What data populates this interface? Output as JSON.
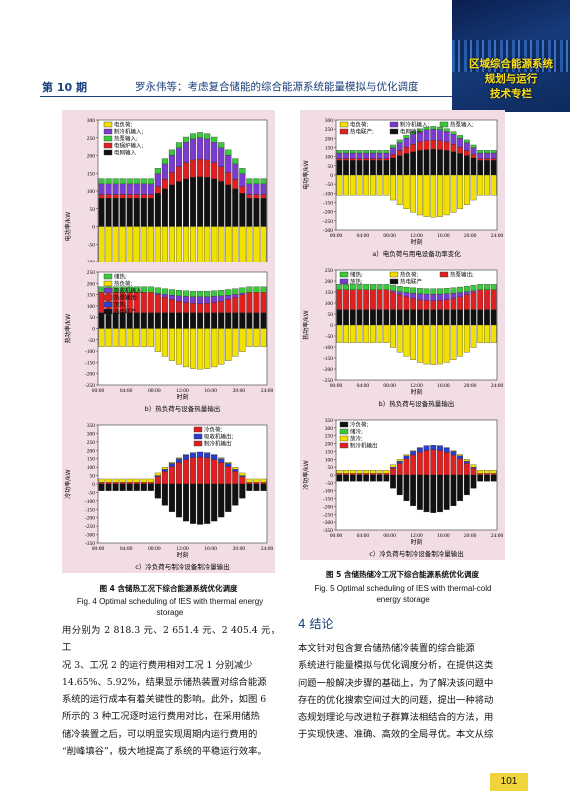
{
  "header": {
    "issue": "第 10 期",
    "running_title": "罗永伟等：考虑复合储能的综合能源系统能量模拟与优化调度"
  },
  "banner": {
    "lines": [
      "区域综合能源系统",
      "规划与运行",
      "技术专栏"
    ]
  },
  "colors": {
    "pink_panel": "#f2dde6",
    "electric_load": "#f2e000",
    "chiller_input": "#7b3bd1",
    "heat_pump_input": "#3cc83c",
    "heat_output": "#e02020",
    "grid_input": "#111111",
    "ice_storage": "#2a3fd0",
    "blue_title": "#1a3f7a"
  },
  "figure4": {
    "caption_zh": "图 4  含储热工况下综合能源系统优化调度",
    "caption_en": "Fig. 4   Optimal scheduling of IES with thermal energy storage",
    "panels": [
      {
        "caption": "a）电负荷与用电设备功率变化",
        "ylabel": "电功率/kW",
        "legend": [
          "电负荷;",
          "制冷机输入;",
          "热泵输入;",
          "电锅炉输入;",
          "电网输入"
        ]
      },
      {
        "caption": "b）热负荷与设备热量输出",
        "ylabel": "热功率/kW",
        "legend": [
          "储热;",
          "热负荷;",
          "吸收机输入;",
          "热泵输出;",
          "放热;",
          "热电联产"
        ]
      },
      {
        "caption": "c）冷负荷与制冷设备制冷量输出",
        "ylabel": "冷功率/kW",
        "legend": [
          "冷负荷;",
          "吸收机输出;",
          "制冷机输出"
        ]
      }
    ]
  },
  "figure5": {
    "caption_zh": "图 5  含储热储冷工况下综合能源系统优化调度",
    "caption_en": "Fig. 5   Optimal scheduling of IES with thermal-cold energy storage",
    "panels": [
      {
        "caption": "a）电负荷与用电设备功率变化",
        "ylabel": "电功率/kW",
        "legend": [
          "电负荷;",
          "制冷机输入;",
          "热泵输入;",
          "热电联产;",
          "电网输入"
        ]
      },
      {
        "caption": "b）热负荷与设备热量输出",
        "ylabel": "热功率/kW",
        "legend": [
          "储热;",
          "热负荷;",
          "热泵输出;",
          "放热;",
          "热电联产"
        ]
      },
      {
        "caption": "c）冷负荷与制冷设备制冷量输出",
        "ylabel": "冷功率/kW",
        "legend": [
          "冷负荷;",
          "储冷;",
          "放冷;",
          "制冷机输出"
        ]
      }
    ]
  },
  "axis": {
    "xlabel": "时刻",
    "xticks": [
      "00:00",
      "04:00",
      "08:00",
      "12:00",
      "16:00",
      "20:00",
      "24:00"
    ]
  },
  "chart_data": [
    {
      "type": "bar",
      "title": "图4 a",
      "yticks": [
        300,
        250,
        200,
        150,
        100,
        50,
        0,
        -50,
        -100,
        -150,
        -200,
        -250,
        -300
      ],
      "ylim": [
        -300,
        300
      ]
    },
    {
      "type": "bar",
      "title": "图4 b",
      "yticks": [
        250,
        200,
        150,
        100,
        50,
        0,
        -50,
        -100,
        -150,
        -200,
        -250
      ],
      "ylim": [
        -250,
        250
      ]
    },
    {
      "type": "bar",
      "title": "图4 c",
      "yticks": [
        350,
        300,
        250,
        200,
        150,
        100,
        50,
        0,
        -50,
        -100,
        -150,
        -200,
        -250,
        -300,
        -350
      ],
      "ylim": [
        -350,
        350
      ]
    },
    {
      "type": "bar",
      "title": "图5 a",
      "yticks": [
        300,
        250,
        200,
        150,
        100,
        50,
        0,
        -50,
        -100,
        -150,
        -200,
        -250,
        -300
      ],
      "ylim": [
        -300,
        300
      ]
    },
    {
      "type": "bar",
      "title": "图5 b",
      "yticks": [
        250,
        200,
        150,
        100,
        50,
        0,
        -50,
        -100,
        -150,
        -200,
        -250
      ],
      "ylim": [
        -250,
        250
      ]
    },
    {
      "type": "bar",
      "title": "图5 c",
      "yticks": [
        350,
        300,
        250,
        200,
        150,
        100,
        50,
        0,
        -50,
        -100,
        -150,
        -200,
        -250,
        -300,
        -350
      ],
      "ylim": [
        -350,
        350
      ]
    }
  ],
  "section4": {
    "title": "4   结论"
  },
  "left_text": "用分别为 2 818.3 元、2 651.4 元、2 405.4 元，工\n况 3、工况 2 的运行费用相对工况 1 分别减少\n14.65%、5.92%，结果显示储热装置对综合能源\n系统的运行成本有着关键性的影响。此外，如图 6\n所示的 3 种工况逐时运行费用对比，在采用储热\n储冷装置之后，可以明显实现周期内运行费用的\n“削峰填谷”，极大地提高了系统的平稳运行效率。",
  "right_text": "    本文针对包含复合储热储冷装置的综合能源\n系统进行能量模拟与优化调度分析，在提供这类\n问题一般解决步骤的基础上，为了解决该问题中\n存在的优化搜索空间过大的问题，提出一种将动\n态规划理论与改进粒子群算法相结合的方法，用\n于实现快速、准确、高效的全局寻优。本文从综",
  "page_number": "101"
}
